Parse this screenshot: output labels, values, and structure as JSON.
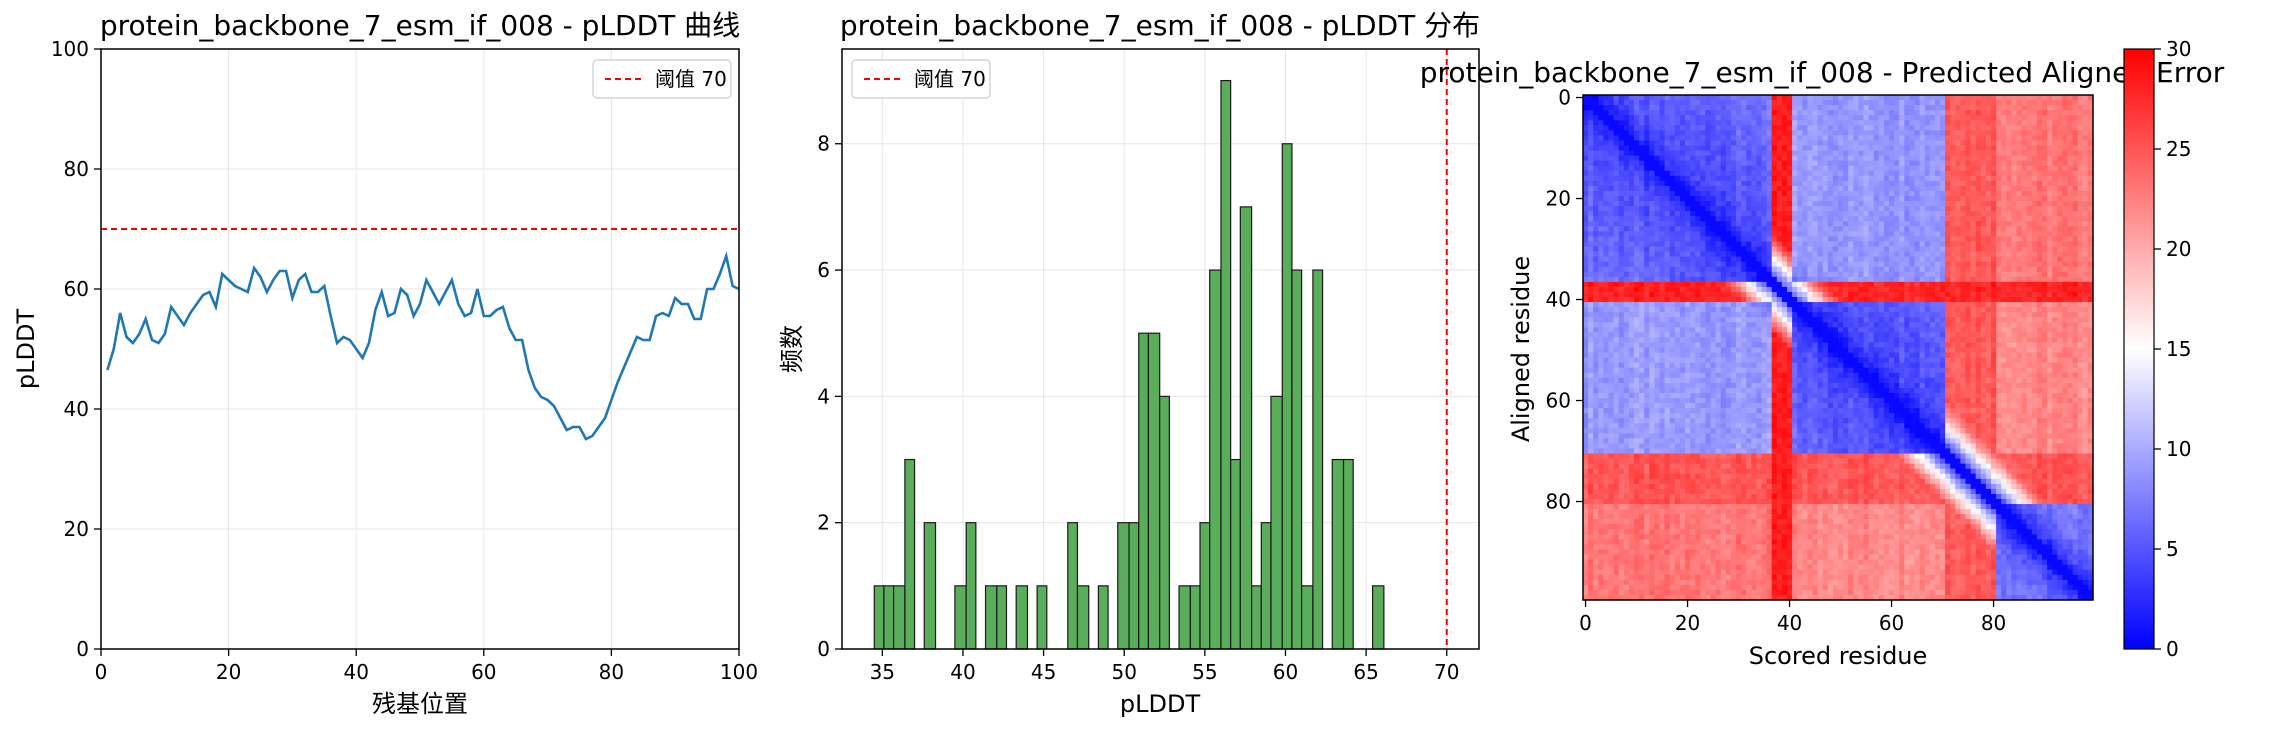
{
  "chart_data": [
    {
      "type": "line",
      "title": "protein_backbone_7_esm_if_008 - pLDDT 曲线",
      "xlabel": "残基位置",
      "ylabel": "pLDDT",
      "xlim": [
        0,
        100
      ],
      "ylim": [
        0,
        100
      ],
      "xticks": [
        "0",
        "20",
        "40",
        "60",
        "80",
        "100"
      ],
      "yticks": [
        "0",
        "20",
        "40",
        "60",
        "80",
        "100"
      ],
      "grid": true,
      "legend_position": "upper right",
      "threshold": {
        "value": 70,
        "label": "阈值 70",
        "color": "#ff0000"
      },
      "series": [
        {
          "color": "#1f77b4",
          "x": [
            1,
            2,
            3,
            4,
            5,
            6,
            7,
            8,
            9,
            10,
            11,
            12,
            13,
            14,
            15,
            16,
            17,
            18,
            19,
            20,
            21,
            22,
            23,
            24,
            25,
            26,
            27,
            28,
            29,
            30,
            31,
            32,
            33,
            34,
            35,
            36,
            37,
            38,
            39,
            40,
            41,
            42,
            43,
            44,
            45,
            46,
            47,
            48,
            49,
            50,
            51,
            52,
            53,
            54,
            55,
            56,
            57,
            58,
            59,
            60,
            61,
            62,
            63,
            64,
            65,
            66,
            67,
            68,
            69,
            70,
            71,
            72,
            73,
            74,
            75,
            76,
            77,
            78,
            79,
            80,
            81,
            82,
            83,
            84,
            85,
            86,
            87,
            88,
            89,
            90,
            91,
            92,
            93,
            94,
            95,
            96,
            97,
            98,
            99,
            100
          ],
          "y": [
            46.5,
            50,
            56,
            52,
            51,
            52.5,
            55,
            51.5,
            51,
            52.5,
            57,
            55.5,
            54,
            56,
            57.5,
            59,
            59.5,
            57,
            62.5,
            61.5,
            60.5,
            60,
            59.5,
            63.5,
            62,
            59.5,
            61.5,
            63,
            63,
            58.5,
            61.5,
            62.5,
            59.5,
            59.5,
            60.5,
            55.5,
            51,
            52,
            51.5,
            50,
            48.5,
            51,
            56.5,
            59.5,
            55.5,
            56,
            60,
            59,
            55.5,
            57.5,
            61.5,
            59.5,
            57.5,
            59.5,
            61.5,
            57.5,
            55.5,
            56,
            60,
            55.5,
            55.5,
            56.5,
            57,
            53.5,
            51.5,
            51.5,
            46.5,
            43.5,
            42,
            41.5,
            40.5,
            38.5,
            36.5,
            37,
            37,
            35,
            35.5,
            37,
            38.5,
            41.5,
            44.5,
            47,
            49.5,
            52,
            51.5,
            51.5,
            55.5,
            56,
            55.5,
            58.5,
            57.5,
            57.5,
            55,
            55,
            60,
            60,
            62.5,
            65.5,
            60.5,
            60
          ]
        }
      ]
    },
    {
      "type": "bar",
      "subtype": "histogram",
      "title": "protein_backbone_7_esm_if_008 - pLDDT 分布",
      "xlabel": "pLDDT",
      "ylabel": "频数",
      "xlim": [
        32.5,
        72
      ],
      "ylim": [
        0,
        9.5
      ],
      "xticks": [
        "35",
        "40",
        "45",
        "50",
        "55",
        "60",
        "65",
        "70"
      ],
      "yticks": [
        "0",
        "2",
        "4",
        "6",
        "8"
      ],
      "grid": true,
      "legend_position": "upper left",
      "threshold": {
        "value": 70,
        "label": "阈值 70",
        "color": "#ff0000"
      },
      "bar_color": "#5aad5a",
      "bins": [
        {
          "x0": 34.5,
          "x1": 35.1,
          "count": 1
        },
        {
          "x0": 35.1,
          "x1": 35.7,
          "count": 1
        },
        {
          "x0": 35.7,
          "x1": 36.4,
          "count": 1
        },
        {
          "x0": 36.4,
          "x1": 37.0,
          "count": 3
        },
        {
          "x0": 37.6,
          "x1": 38.3,
          "count": 2
        },
        {
          "x0": 39.5,
          "x1": 40.2,
          "count": 1
        },
        {
          "x0": 40.2,
          "x1": 40.8,
          "count": 2
        },
        {
          "x0": 41.4,
          "x1": 42.1,
          "count": 1
        },
        {
          "x0": 42.1,
          "x1": 42.7,
          "count": 1
        },
        {
          "x0": 43.3,
          "x1": 44.0,
          "count": 1
        },
        {
          "x0": 44.6,
          "x1": 45.2,
          "count": 1
        },
        {
          "x0": 46.5,
          "x1": 47.1,
          "count": 2
        },
        {
          "x0": 47.1,
          "x1": 47.8,
          "count": 1
        },
        {
          "x0": 48.4,
          "x1": 49.0,
          "count": 1
        },
        {
          "x0": 49.6,
          "x1": 50.3,
          "count": 2
        },
        {
          "x0": 50.3,
          "x1": 50.9,
          "count": 2
        },
        {
          "x0": 50.9,
          "x1": 51.5,
          "count": 5
        },
        {
          "x0": 51.5,
          "x1": 52.2,
          "count": 5
        },
        {
          "x0": 52.2,
          "x1": 52.8,
          "count": 4
        },
        {
          "x0": 53.4,
          "x1": 54.1,
          "count": 1
        },
        {
          "x0": 54.1,
          "x1": 54.7,
          "count": 1
        },
        {
          "x0": 54.7,
          "x1": 55.3,
          "count": 2
        },
        {
          "x0": 55.3,
          "x1": 56.0,
          "count": 6
        },
        {
          "x0": 56.0,
          "x1": 56.6,
          "count": 9
        },
        {
          "x0": 56.6,
          "x1": 57.2,
          "count": 3
        },
        {
          "x0": 57.2,
          "x1": 57.9,
          "count": 7
        },
        {
          "x0": 57.9,
          "x1": 58.5,
          "count": 1
        },
        {
          "x0": 58.5,
          "x1": 59.1,
          "count": 2
        },
        {
          "x0": 59.1,
          "x1": 59.8,
          "count": 4
        },
        {
          "x0": 59.8,
          "x1": 60.4,
          "count": 8
        },
        {
          "x0": 60.4,
          "x1": 61.0,
          "count": 6
        },
        {
          "x0": 61.0,
          "x1": 61.7,
          "count": 1
        },
        {
          "x0": 61.7,
          "x1": 62.3,
          "count": 6
        },
        {
          "x0": 62.9,
          "x1": 63.6,
          "count": 3
        },
        {
          "x0": 63.6,
          "x1": 64.2,
          "count": 3
        },
        {
          "x0": 65.4,
          "x1": 66.1,
          "count": 1
        }
      ]
    },
    {
      "type": "heatmap",
      "title": "protein_backbone_7_esm_if_008 - Predicted Aligned Error",
      "xlabel": "Scored residue",
      "ylabel": "Aligned residue",
      "n_residues": 100,
      "xticks": [
        "0",
        "20",
        "40",
        "60",
        "80"
      ],
      "yticks": [
        "0",
        "20",
        "40",
        "60",
        "80"
      ],
      "colormap": "bwr",
      "vmin": 0,
      "vmax": 30,
      "colorbar_ticks": [
        "0",
        "5",
        "10",
        "15",
        "20",
        "25",
        "30"
      ],
      "domains": [
        {
          "range": [
            0,
            36
          ],
          "within_error": 4
        },
        {
          "range": [
            40,
            70
          ],
          "within_error": 4
        },
        {
          "range": [
            76,
            99
          ],
          "within_error": 6
        }
      ],
      "diagonal_error": 0.5,
      "error_summary": {
        "domain_A_to_domain_B": 9,
        "domain_A_to_domain_C": 23,
        "domain_B_to_domain_C": 22,
        "linker_rows_37_40": 28,
        "linker_rows_72_80": 28
      }
    }
  ]
}
